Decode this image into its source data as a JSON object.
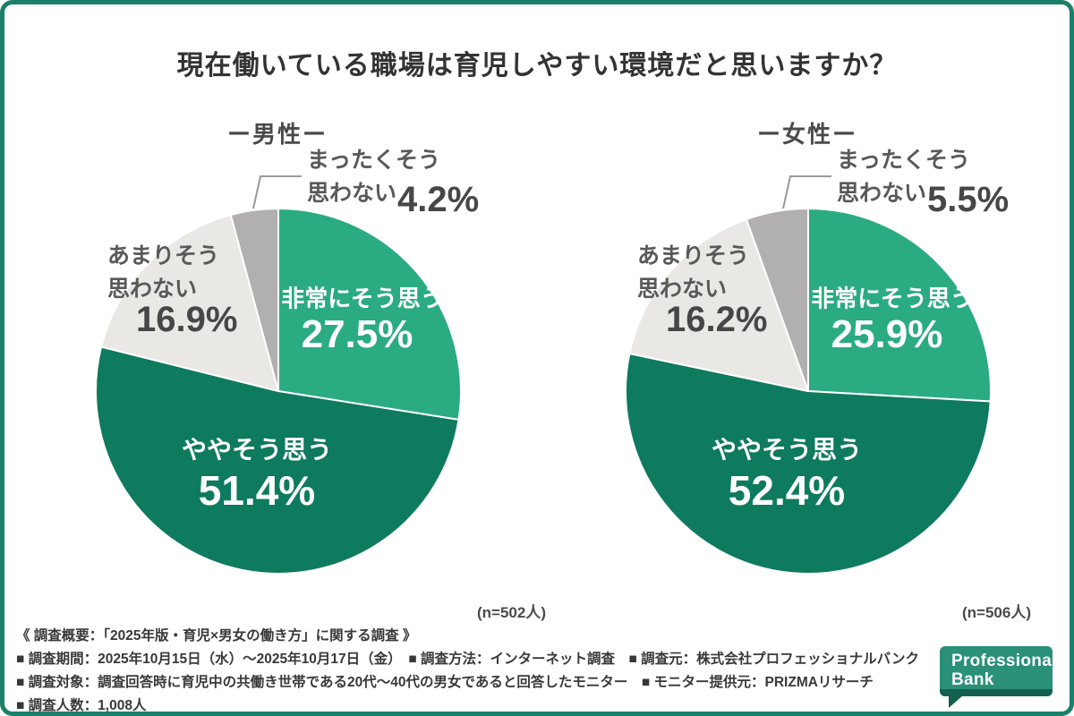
{
  "page": {
    "title": "現在働いている職場は育児しやすい環境だと思いますか？",
    "frame_color": "#1b8069",
    "background_color": "#ffffff"
  },
  "chart_data": [
    {
      "type": "pie",
      "group_label": "ー男性ー",
      "sample_size": "(n=502人)",
      "start_angle": "12 o'clock, clockwise",
      "segments": [
        {
          "label": "非常にそう思う",
          "value_pct": 27.5,
          "display": "27.5%",
          "color": "#2bab81",
          "label_placement": "inside",
          "label_color": "#ffffff"
        },
        {
          "label": "ややそう思う",
          "value_pct": 51.4,
          "display": "51.4%",
          "color": "#0e7a5e",
          "label_placement": "inside",
          "label_color": "#ffffff"
        },
        {
          "label": "あまりそう思わない",
          "value_pct": 16.9,
          "display": "16.9%",
          "color": "#e9e8e5",
          "label_placement": "outside-left",
          "label_color": "#595959"
        },
        {
          "label": "まったくそう思わない",
          "value_pct": 4.2,
          "display": "4.2%",
          "color": "#b1b0ae",
          "label_placement": "outside-top",
          "label_color": "#595959"
        }
      ]
    },
    {
      "type": "pie",
      "group_label": "ー女性ー",
      "sample_size": "(n=506人)",
      "start_angle": "12 o'clock, clockwise",
      "segments": [
        {
          "label": "非常にそう思う",
          "value_pct": 25.9,
          "display": "25.9%",
          "color": "#2bab81",
          "label_placement": "inside",
          "label_color": "#ffffff"
        },
        {
          "label": "ややそう思う",
          "value_pct": 52.4,
          "display": "52.4%",
          "color": "#0e7a5e",
          "label_placement": "inside",
          "label_color": "#ffffff"
        },
        {
          "label": "あまりそう思わない",
          "value_pct": 16.2,
          "display": "16.2%",
          "color": "#e9e8e5",
          "label_placement": "outside-left",
          "label_color": "#595959"
        },
        {
          "label": "まったくそう思わない",
          "value_pct": 5.5,
          "display": "5.5%",
          "color": "#b1b0ae",
          "label_placement": "outside-top",
          "label_color": "#595959"
        }
      ]
    }
  ],
  "footer": {
    "lines": [
      "《 調査概要：「2025年版・育児×男女の働き方」に関する調査 》",
      "■ 調査期間：2025年10月15日（水）〜2025年10月17日（金）　■ 調査方法：インターネット調査　■ 調査元：株式会社プロフェッショナルバンク",
      "■ 調査対象：調査回答時に育児中の共働き世帯である20代〜40代の男女であると回答したモニター　■ モニター提供元：PRIZMAリサーチ",
      "■ 調査人数：1,008人"
    ]
  },
  "logo": {
    "line1": "Professional",
    "line2": "Bank",
    "bg_color": "#2b9078",
    "strip_color": "#14604e"
  }
}
